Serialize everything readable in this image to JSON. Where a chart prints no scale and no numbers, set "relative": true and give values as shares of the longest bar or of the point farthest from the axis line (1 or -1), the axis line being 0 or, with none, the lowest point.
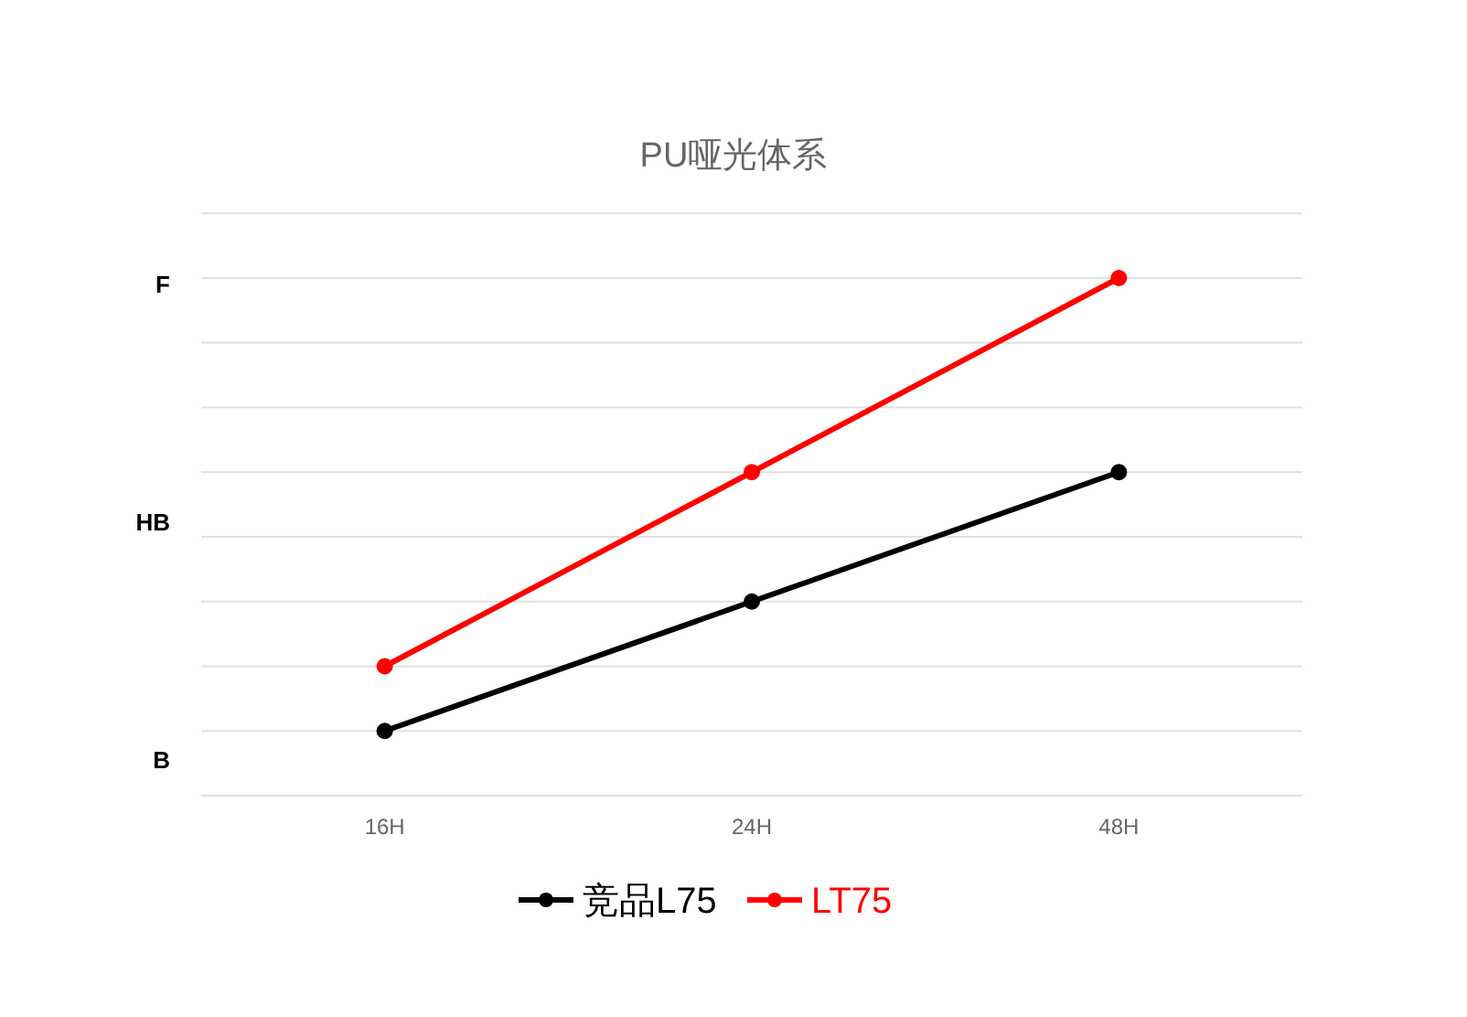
{
  "chart_data": {
    "type": "line",
    "title": "PU哑光体系",
    "categories": [
      "16H",
      "24H",
      "48H"
    ],
    "relative": true,
    "series": [
      {
        "name": "竞品L75",
        "color": "#000000",
        "values": [
          0.125,
          0.375,
          0.625
        ]
      },
      {
        "name": "LT75",
        "color": "#ff0000",
        "values": [
          0.25,
          0.625,
          1
        ]
      }
    ],
    "annotations": [
      "B",
      "HB",
      "F"
    ],
    "grid": "y",
    "legend": "bottom",
    "marker": "circle",
    "line_style": "solid"
  }
}
